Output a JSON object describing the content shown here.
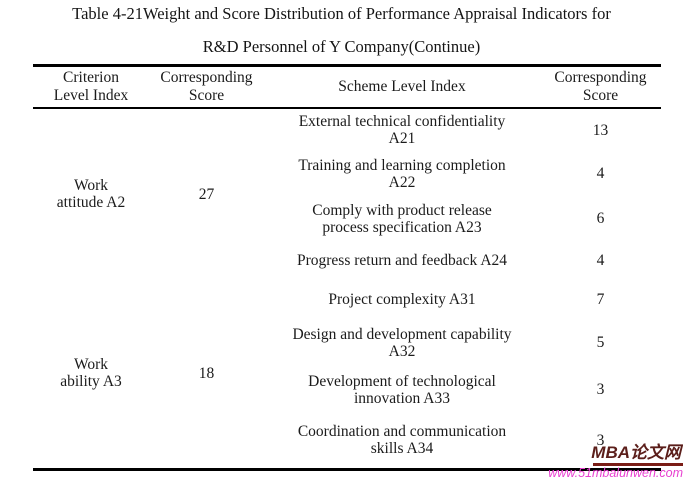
{
  "title": {
    "line1": "Table 4-21Weight and Score Distribution of Performance Appraisal Indicators for",
    "line2": "R&D Personnel of Y Company(Continue)"
  },
  "table": {
    "headers": {
      "criterion": {
        "lines": [
          "Criterion",
          "Level Index"
        ]
      },
      "criterion_score": {
        "lines": [
          "Corresponding",
          "Score"
        ]
      },
      "scheme": {
        "lines": [
          "Scheme Level Index"
        ]
      },
      "scheme_score": {
        "lines": [
          "Corresponding",
          "Score"
        ]
      }
    },
    "groups": [
      {
        "criterion_lines": [
          "Work",
          "attitude A2"
        ],
        "criterion_full": "Work attitude A2",
        "score": "27",
        "rows": [
          {
            "scheme_lines": [
              "External technical confidentiality",
              "A21"
            ],
            "scheme_full": "External technical confidentiality A21",
            "score": "13"
          },
          {
            "scheme_lines": [
              "Training and learning completion",
              "A22"
            ],
            "scheme_full": "Training and learning completion A22",
            "score": "4"
          },
          {
            "scheme_lines": [
              "Comply with product release",
              "process specification A23"
            ],
            "scheme_full": "Comply with product release process specification A23",
            "score": "6"
          },
          {
            "scheme_lines": [
              "Progress return and feedback A24"
            ],
            "scheme_full": "Progress return and feedback A24",
            "score": "4"
          }
        ]
      },
      {
        "criterion_lines": [
          "Work",
          "ability A3"
        ],
        "criterion_full": "Work ability A3",
        "score": "18",
        "rows": [
          {
            "scheme_lines": [
              "Project complexity A31"
            ],
            "scheme_full": "Project complexity A31",
            "score": "7"
          },
          {
            "scheme_lines": [
              "Design and development capability",
              "A32"
            ],
            "scheme_full": "Design and development capability A32",
            "score": "5"
          },
          {
            "scheme_lines": [
              "Development of technological",
              "innovation A33"
            ],
            "scheme_full": "Development of technological innovation A33",
            "score": "3"
          },
          {
            "scheme_lines": [
              "Coordination and communication",
              "skills A34"
            ],
            "scheme_full": "Coordination and communication skills A34",
            "score": "3"
          }
        ]
      }
    ]
  },
  "watermark": {
    "brand": "MBA论文网",
    "url": "www.51mbalunwen.com",
    "brand_color": "#5b1e1a",
    "underline_color": "#7a1d16",
    "url_color": "#e83fd0"
  }
}
